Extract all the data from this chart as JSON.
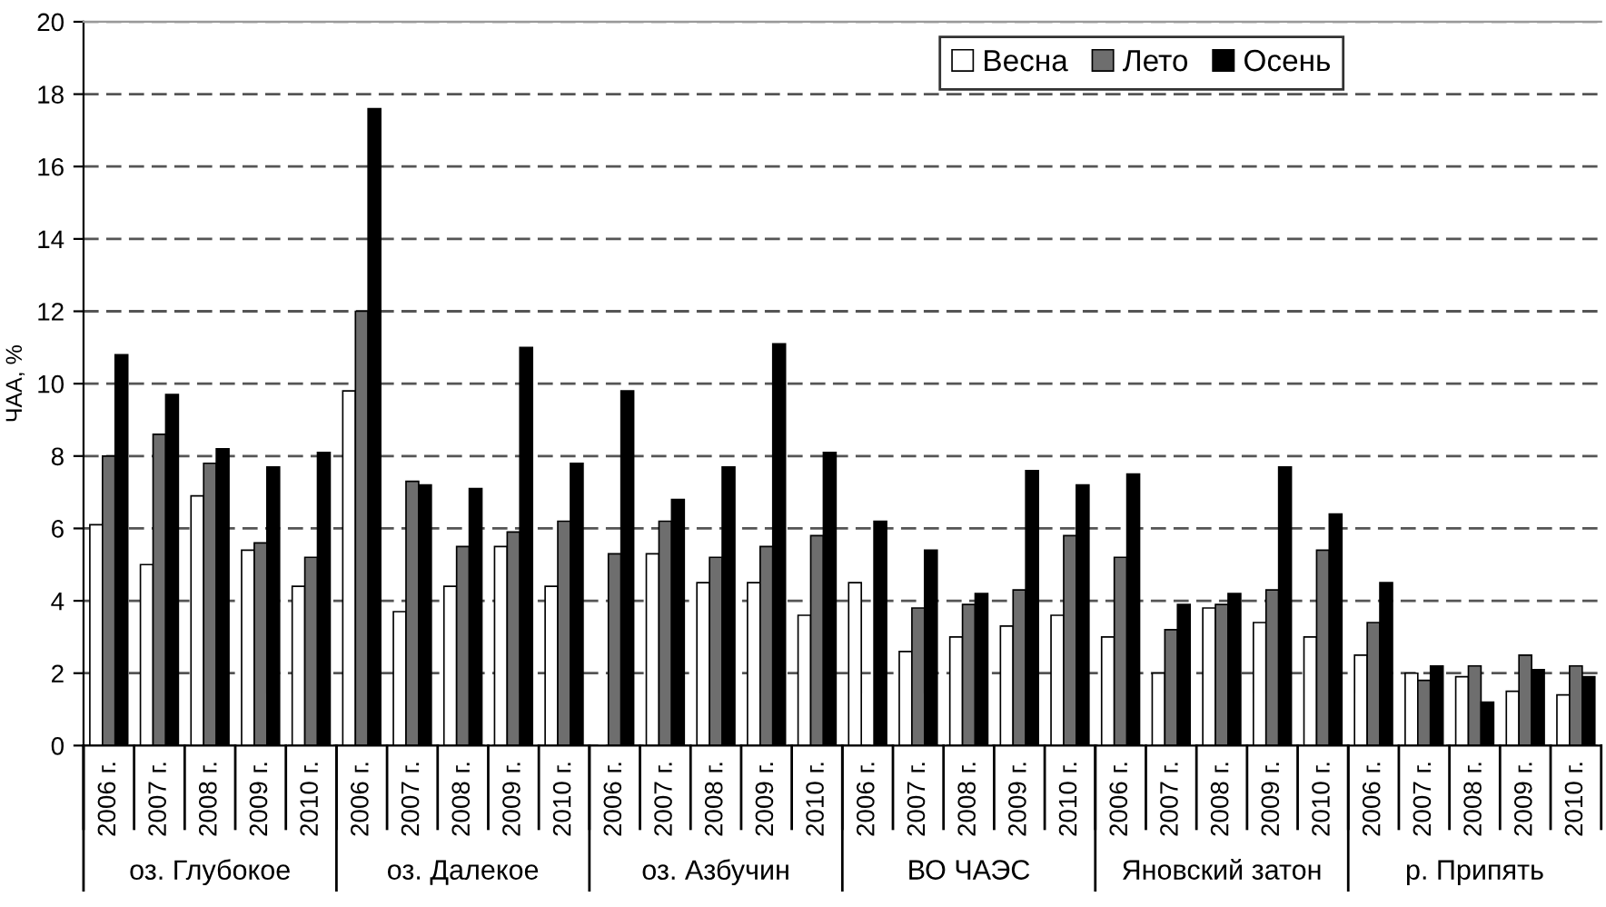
{
  "chart_data": {
    "type": "bar",
    "ylabel": "ЧАА, %",
    "categories": [
      "2006 г.",
      "2007 г.",
      "2008 г.",
      "2009 г.",
      "2010 г.",
      "2006 г.",
      "2007 г.",
      "2008 г.",
      "2009 г.",
      "2010 г.",
      "2006 г.",
      "2007 г.",
      "2008 г.",
      "2009 г.",
      "2010 г.",
      "2006 г.",
      "2007 г.",
      "2008 г.",
      "2009 г.",
      "2010 г.",
      "2006 г.",
      "2007 г.",
      "2008 г.",
      "2009 г.",
      "2010 г.",
      "2006 г.",
      "2007 г.",
      "2008 г.",
      "2009 г.",
      "2010 г."
    ],
    "series": [
      {
        "name": "Весна",
        "color": "#ffffff",
        "values": [
          6.1,
          5.0,
          6.9,
          5.4,
          4.4,
          9.8,
          3.7,
          4.4,
          5.5,
          4.4,
          null,
          5.3,
          4.5,
          4.5,
          3.6,
          4.5,
          2.6,
          3.0,
          3.3,
          3.6,
          3.0,
          2.0,
          3.8,
          3.4,
          3.0,
          2.5,
          2.0,
          1.9,
          1.5,
          1.4
        ]
      },
      {
        "name": "Лето",
        "color": "#6e6e6e",
        "values": [
          8.0,
          8.6,
          7.8,
          5.6,
          5.2,
          12.0,
          7.3,
          5.5,
          5.9,
          6.2,
          5.3,
          6.2,
          5.2,
          5.5,
          5.8,
          null,
          3.8,
          3.9,
          4.3,
          5.8,
          5.2,
          3.2,
          3.9,
          4.3,
          5.4,
          3.4,
          1.8,
          2.2,
          2.5,
          2.2
        ]
      },
      {
        "name": "Осень",
        "color": "#000000",
        "values": [
          10.8,
          9.7,
          8.2,
          7.7,
          8.1,
          17.6,
          7.2,
          7.1,
          11.0,
          7.8,
          9.8,
          6.8,
          7.7,
          11.1,
          8.1,
          6.2,
          5.4,
          4.2,
          7.6,
          7.2,
          7.5,
          3.9,
          4.2,
          7.7,
          6.4,
          4.5,
          2.2,
          1.2,
          2.1,
          1.9
        ]
      }
    ],
    "annotations": [
      "оз. Глубокое",
      "оз. Далекое",
      "оз. Азбучин",
      "ВО ЧАЭС",
      "Яновский затон",
      "р. Припять"
    ],
    "ylim": [
      0,
      20
    ],
    "yticks": [
      0,
      2,
      4,
      6,
      8,
      10,
      12,
      14,
      16,
      18,
      20
    ],
    "grid": "y",
    "legend": "top right"
  }
}
